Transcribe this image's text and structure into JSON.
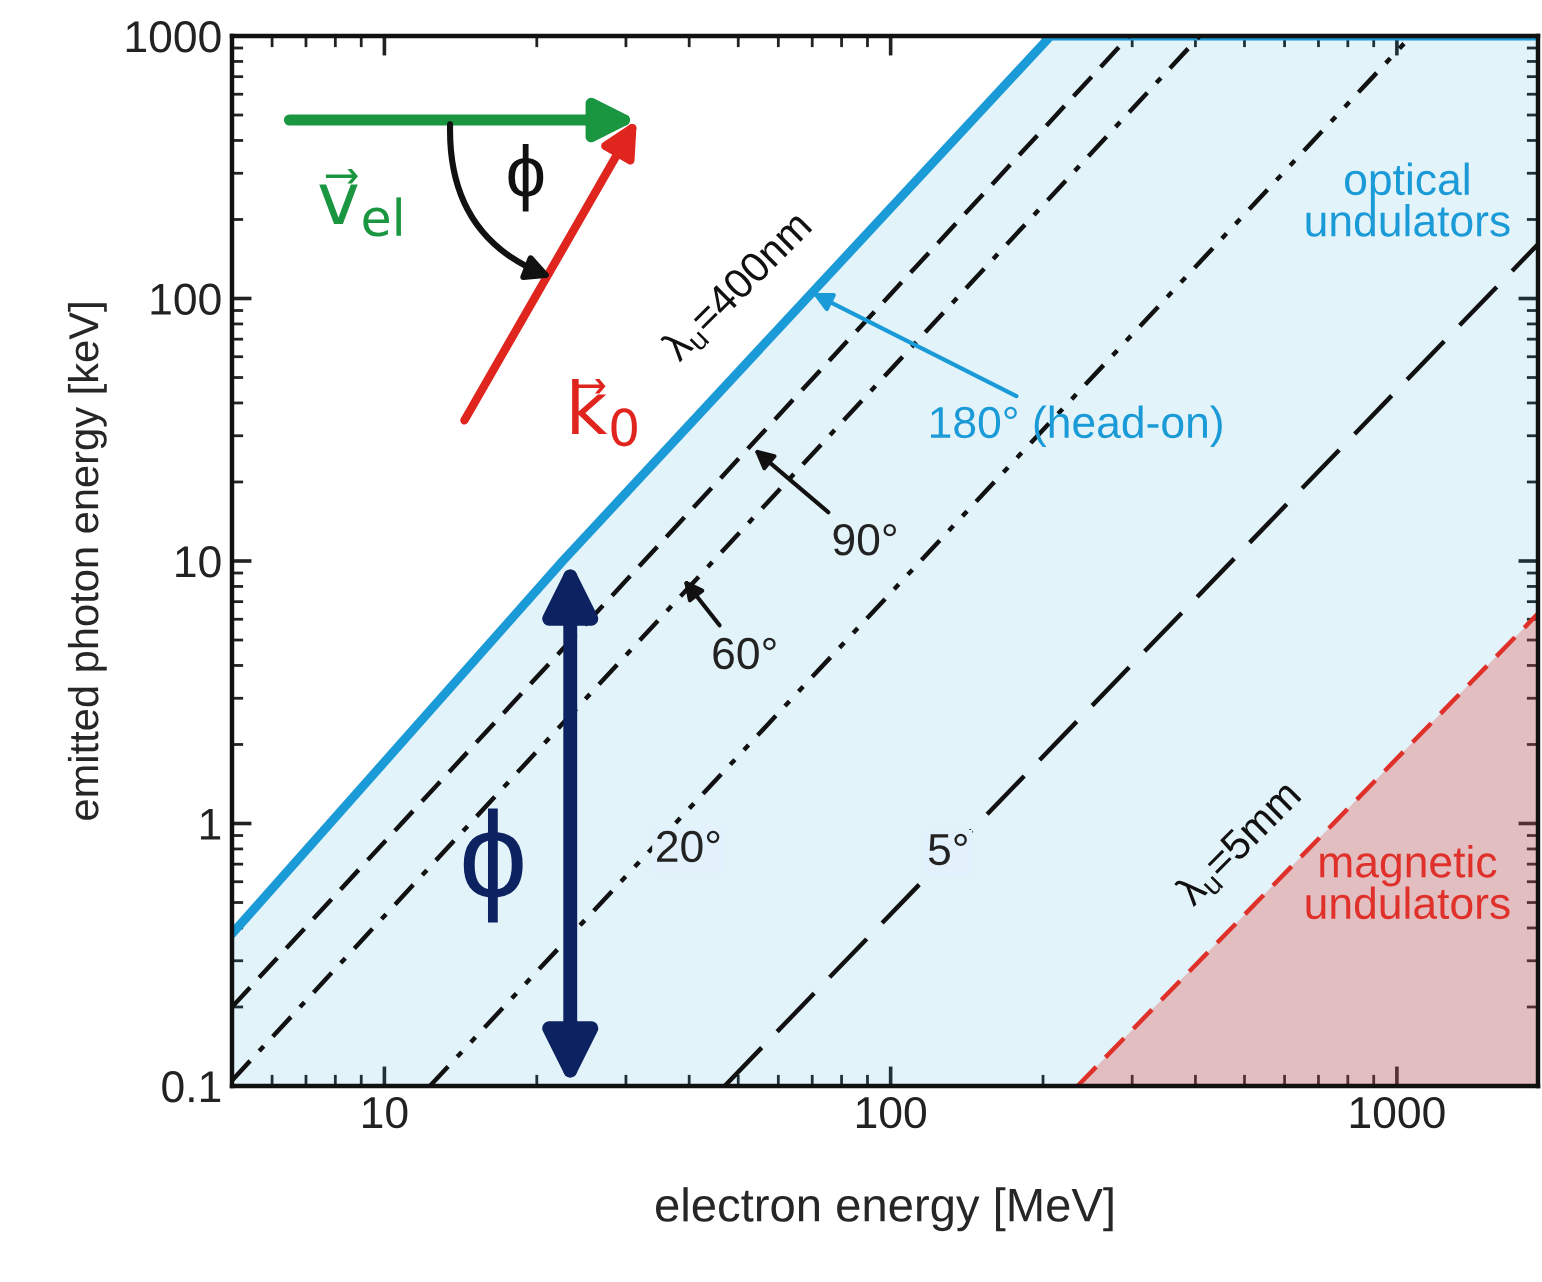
{
  "chart_data": {
    "type": "line",
    "xlabel": "electron energy [MeV]",
    "ylabel": "emitted photon energy [keV]",
    "log": "xy",
    "xlim": [
      5,
      1900
    ],
    "ylim": [
      0.1,
      1000
    ],
    "xticks": [
      10,
      100,
      1000
    ],
    "yticks": [
      0.1,
      1,
      10,
      100,
      1000
    ],
    "grid": false,
    "marker": "none",
    "series": [
      {
        "type": "area",
        "color": "#1a9ad7",
        "line_style": "solid",
        "x": [
          5,
          22.5,
          207,
          1900
        ],
        "values": [
          0.38,
          10,
          1000,
          1000
        ]
      },
      {
        "type": "area",
        "color": "#e0302a",
        "line_style": "dashed",
        "x": [
          234,
          1900
        ],
        "values": [
          0.1,
          6.3
        ]
      },
      {
        "color": "#111111",
        "line_style": "dashed",
        "x": [
          5,
          296
        ],
        "values": [
          0.2,
          1000
        ]
      },
      {
        "color": "#111111",
        "line_style": "dashdot",
        "x": [
          5,
          408
        ],
        "values": [
          0.105,
          1000
        ]
      },
      {
        "color": "#111111",
        "line_style": "dashdotdot",
        "x": [
          12.3,
          1067
        ],
        "values": [
          0.1,
          1000
        ]
      },
      {
        "color": "#111111",
        "line_style": "longdash",
        "x": [
          47,
          1900
        ],
        "values": [
          0.1,
          161
        ]
      }
    ],
    "annotations": [
      {
        "text": "λ$_{u}$=400nm",
        "x": 60,
        "y": 78
      },
      {
        "text": "180° (head-on)",
        "x": 70,
        "y": 105
      },
      {
        "text": "90°",
        "x": 53.7,
        "y": 26.7
      },
      {
        "text": "60°",
        "x": 39,
        "y": 8.5
      },
      {
        "text": "20°",
        "x": 33.4,
        "y": 0.79
      },
      {
        "text": "5°",
        "x": 130,
        "y": 0.77
      },
      {
        "text": "λ$_{u}$=5mm",
        "x": 573,
        "y": 0.59
      },
      "optical\nundulators",
      "magnetic\nundulators",
      "v⃗$_{el}$",
      "k⃗$_{0}$",
      "ϕ",
      "ϕ"
    ]
  }
}
